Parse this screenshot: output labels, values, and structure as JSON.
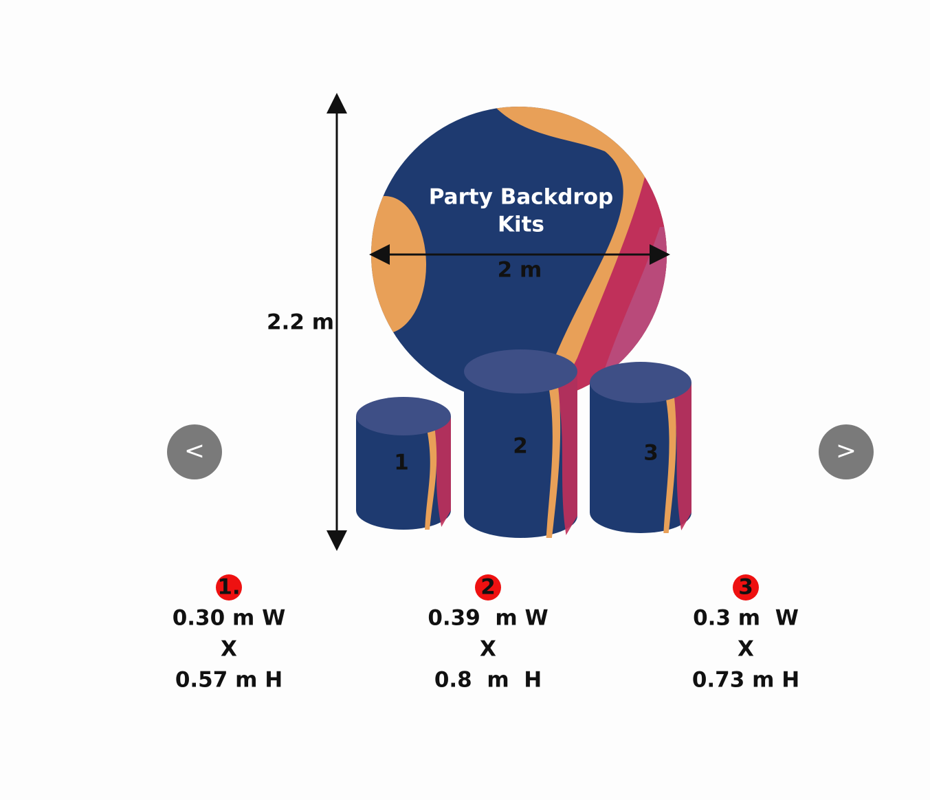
{
  "carousel": {
    "prev": "<",
    "next": ">"
  },
  "image": {
    "title_lines": [
      "Party Backdrop",
      "Kits"
    ],
    "width_label": "2 m",
    "height_label": "2.2 m",
    "cylinders": [
      "1",
      "2",
      "3"
    ]
  },
  "specs": [
    {
      "badge": "1.",
      "width": "0.30 m W",
      "times": "X",
      "height": "0.57 m H"
    },
    {
      "badge": "2",
      "width": "0.39  m W",
      "times": "X",
      "height": "0.8  m  H"
    },
    {
      "badge": "3",
      "width": "0.3 m  W",
      "times": "X",
      "height": "0.73 m H"
    }
  ]
}
